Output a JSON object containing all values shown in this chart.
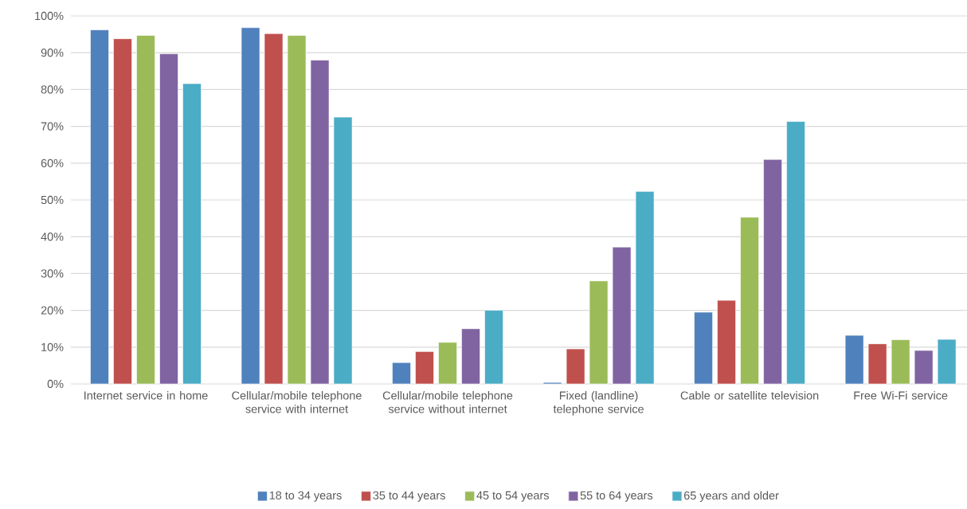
{
  "chart_data": {
    "type": "bar",
    "categories": [
      "Internet service in home",
      "Cellular/mobile telephone service with internet",
      "Cellular/mobile telephone service without internet",
      "Fixed (landline) telephone service",
      "Cable or satellite television",
      "Free Wi-Fi service"
    ],
    "series": [
      {
        "name": "18 to 34 years",
        "color": "#4f81bd",
        "values": [
          96.2,
          96.8,
          5.8,
          0.4,
          19.5,
          13.2
        ]
      },
      {
        "name": "35 to 44 years",
        "color": "#c0504d",
        "values": [
          93.8,
          95.2,
          8.8,
          9.5,
          22.7,
          10.9
        ]
      },
      {
        "name": "45 to 54 years",
        "color": "#9bbb59",
        "values": [
          94.7,
          94.7,
          11.3,
          28.0,
          45.3,
          12.0
        ]
      },
      {
        "name": "55 to 64 years",
        "color": "#8064a2",
        "values": [
          89.7,
          88.0,
          15.0,
          37.2,
          61.0,
          9.1
        ]
      },
      {
        "name": "65 years and older",
        "color": "#4bacc6",
        "values": [
          81.6,
          72.5,
          20.0,
          52.3,
          71.3,
          12.1
        ]
      }
    ],
    "ylim": [
      0,
      100
    ],
    "yticks": [
      {
        "value": 0,
        "label": "0%"
      },
      {
        "value": 10,
        "label": "10%"
      },
      {
        "value": 20,
        "label": "20%"
      },
      {
        "value": 30,
        "label": "30%"
      },
      {
        "value": 40,
        "label": "40%"
      },
      {
        "value": 50,
        "label": "50%"
      },
      {
        "value": 60,
        "label": "60%"
      },
      {
        "value": 70,
        "label": "70%"
      },
      {
        "value": 80,
        "label": "80%"
      },
      {
        "value": 90,
        "label": "90%"
      },
      {
        "value": 100,
        "label": "100%"
      }
    ],
    "grid": "y",
    "legend": "bottom"
  }
}
